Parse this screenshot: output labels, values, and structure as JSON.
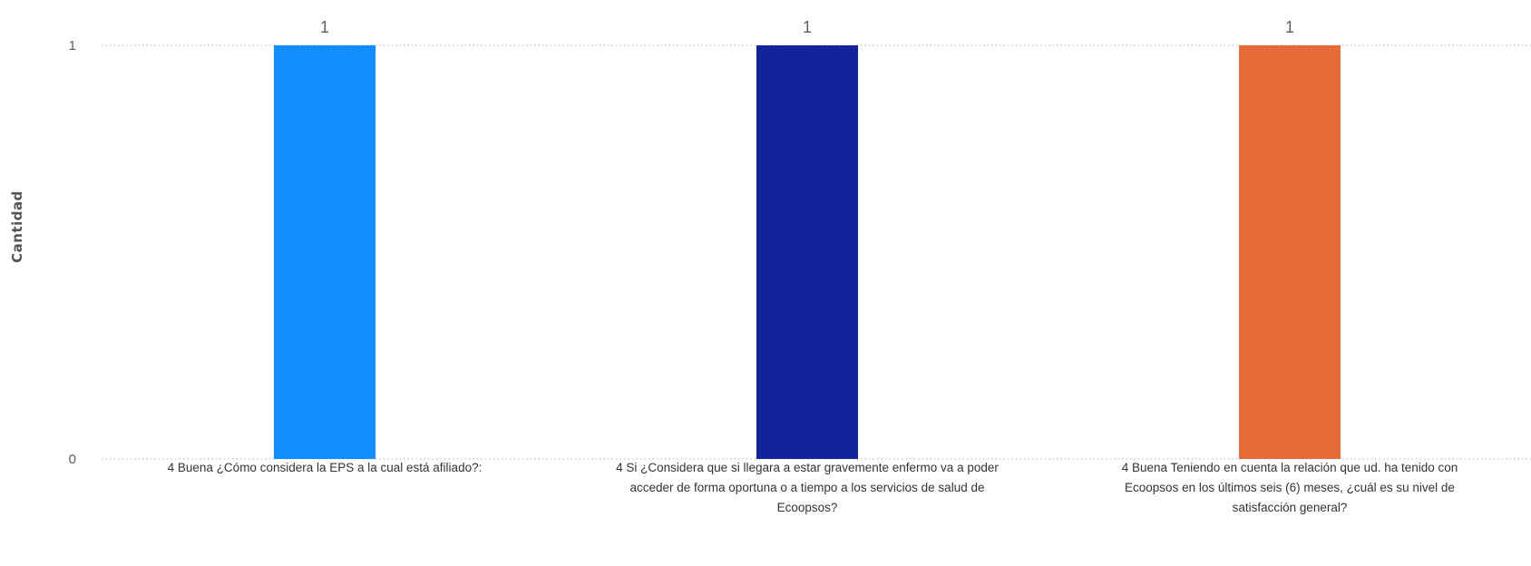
{
  "chart_data": {
    "type": "bar",
    "categories": [
      "4 Buena ¿Cómo considera la EPS a la cual está afiliado?:",
      "4 Si ¿Considera que si llegara a estar gravemente enfermo va a poder acceder de forma oportuna o a tiempo a los servicios de salud de Ecoopsos?",
      "4 Buena Teniendo en cuenta la relación que ud. ha tenido con Ecoopsos en los últimos seis (6) meses, ¿cuál es su nivel de satisfacción general?"
    ],
    "values": [
      1,
      1,
      1
    ],
    "data_labels": [
      "1",
      "1",
      "1"
    ],
    "colors": [
      "#118DFF",
      "#12239E",
      "#E66C37"
    ],
    "title": "",
    "xlabel": "",
    "ylabel": "Cantidad",
    "ylim": [
      0,
      1
    ],
    "yticks": [
      0,
      1
    ],
    "ytick_labels": [
      "0",
      "1"
    ],
    "grid": true
  }
}
